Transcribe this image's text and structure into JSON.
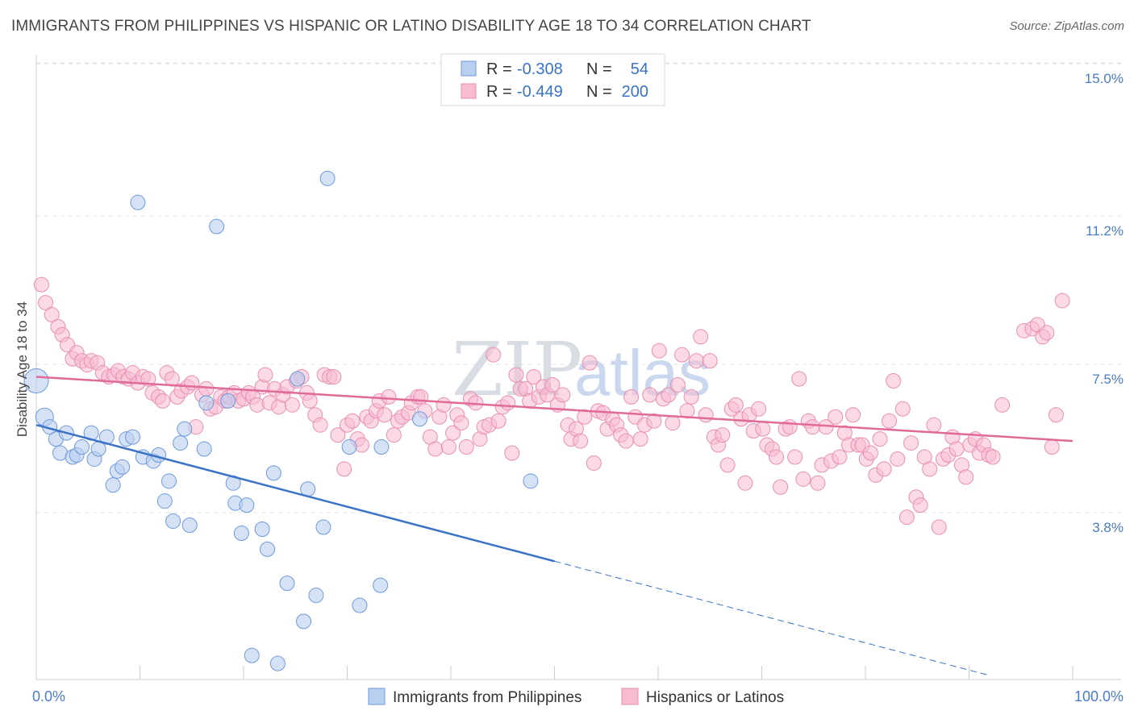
{
  "title": "IMMIGRANTS FROM PHILIPPINES VS HISPANIC OR LATINO DISABILITY AGE 18 TO 34 CORRELATION CHART",
  "source": "Source: ZipAtlas.com",
  "watermark": {
    "part1": "ZIP",
    "part2": "atlas"
  },
  "colors": {
    "blue": "#3a72c4",
    "blue_fill": "#b9cff0",
    "pink": "#e06a98",
    "pink_fill": "#f7bcd1",
    "grid": "#dfe3e8"
  },
  "legend": {
    "rows": [
      {
        "r_label": "R =",
        "r_value": "-0.308",
        "n_label": "N =",
        "n_value": "54"
      },
      {
        "r_label": "R =",
        "r_value": "-0.449",
        "n_label": "N =",
        "n_value": "200"
      }
    ]
  },
  "chart_data": {
    "type": "scatter",
    "title": "IMMIGRANTS FROM PHILIPPINES VS HISPANIC OR LATINO DISABILITY AGE 18 TO 34 CORRELATION CHART",
    "xlabel": "",
    "ylabel": "Disability Age 18 to 34",
    "xlim": [
      0,
      100
    ],
    "ylim": [
      0,
      15.5
    ],
    "x_tick_labels": [
      "0.0%",
      "100.0%"
    ],
    "y_ticks": [
      3.8,
      7.5,
      11.2,
      15.0
    ],
    "y_tick_labels": [
      "3.8%",
      "7.5%",
      "11.2%",
      "15.0%"
    ],
    "grid": true,
    "series": [
      {
        "name": "Immigrants from Philippines",
        "color": "#3a72c4",
        "R": -0.308,
        "N": 54,
        "trend": {
          "x0": 0,
          "y0": 6.35,
          "x1": 50,
          "y1": 2.95,
          "dashed_to_x": 92,
          "dashed_to_y": 0.1
        },
        "points": [
          [
            0,
            7.45
          ],
          [
            0.8,
            6.55
          ],
          [
            1.3,
            6.3
          ],
          [
            1.9,
            6.0
          ],
          [
            2.3,
            5.65
          ],
          [
            2.9,
            6.15
          ],
          [
            3.5,
            5.55
          ],
          [
            3.9,
            5.6
          ],
          [
            4.4,
            5.8
          ],
          [
            5.3,
            6.15
          ],
          [
            5.6,
            5.5
          ],
          [
            6.0,
            5.75
          ],
          [
            6.8,
            6.05
          ],
          [
            7.4,
            4.85
          ],
          [
            7.8,
            5.2
          ],
          [
            8.3,
            5.3
          ],
          [
            8.7,
            6.0
          ],
          [
            9.3,
            6.05
          ],
          [
            9.8,
            11.9
          ],
          [
            10.3,
            5.55
          ],
          [
            11.3,
            5.45
          ],
          [
            11.8,
            5.6
          ],
          [
            12.4,
            4.45
          ],
          [
            12.8,
            4.95
          ],
          [
            13.2,
            3.95
          ],
          [
            13.9,
            5.9
          ],
          [
            14.3,
            6.25
          ],
          [
            14.8,
            3.85
          ],
          [
            16.2,
            5.75
          ],
          [
            16.4,
            6.9
          ],
          [
            17.4,
            11.3
          ],
          [
            18.5,
            6.95
          ],
          [
            19.0,
            4.9
          ],
          [
            19.2,
            4.4
          ],
          [
            19.8,
            3.65
          ],
          [
            20.3,
            4.35
          ],
          [
            20.8,
            0.6
          ],
          [
            21.8,
            3.75
          ],
          [
            22.3,
            3.25
          ],
          [
            22.9,
            5.15
          ],
          [
            23.3,
            0.4
          ],
          [
            24.2,
            2.4
          ],
          [
            25.2,
            7.5
          ],
          [
            25.8,
            1.45
          ],
          [
            26.2,
            4.75
          ],
          [
            27.0,
            2.1
          ],
          [
            27.7,
            3.8
          ],
          [
            28.1,
            12.5
          ],
          [
            30.2,
            5.8
          ],
          [
            31.2,
            1.85
          ],
          [
            33.2,
            2.35
          ],
          [
            33.3,
            5.8
          ],
          [
            37.0,
            6.5
          ],
          [
            47.7,
            4.95
          ]
        ]
      },
      {
        "name": "Hispanics or Latinos",
        "color": "#e06a98",
        "R": -0.449,
        "N": 200,
        "trend": {
          "x0": 0,
          "y0": 7.55,
          "x1": 100,
          "y1": 5.95
        },
        "points": [
          [
            0.5,
            9.85
          ],
          [
            0.9,
            9.4
          ],
          [
            1.5,
            9.1
          ],
          [
            2.1,
            8.8
          ],
          [
            2.5,
            8.6
          ],
          [
            3.0,
            8.35
          ],
          [
            3.5,
            8.0
          ],
          [
            3.9,
            8.15
          ],
          [
            4.4,
            7.95
          ],
          [
            4.9,
            7.85
          ],
          [
            5.3,
            7.95
          ],
          [
            5.9,
            7.9
          ],
          [
            6.4,
            7.65
          ],
          [
            7.0,
            7.55
          ],
          [
            7.5,
            7.6
          ],
          [
            7.9,
            7.7
          ],
          [
            8.4,
            7.55
          ],
          [
            8.9,
            7.5
          ],
          [
            9.3,
            7.65
          ],
          [
            9.8,
            7.4
          ],
          [
            10.3,
            7.55
          ],
          [
            10.8,
            7.5
          ],
          [
            11.2,
            7.15
          ],
          [
            11.8,
            7.05
          ],
          [
            12.2,
            6.95
          ],
          [
            12.6,
            7.65
          ],
          [
            13.1,
            7.5
          ],
          [
            13.6,
            7.05
          ],
          [
            14.0,
            7.2
          ],
          [
            14.6,
            7.3
          ],
          [
            15.0,
            7.4
          ],
          [
            15.4,
            6.3
          ],
          [
            16.0,
            7.1
          ],
          [
            16.4,
            7.25
          ],
          [
            16.8,
            6.75
          ],
          [
            17.3,
            6.8
          ],
          [
            17.8,
            7.05
          ],
          [
            18.2,
            6.95
          ],
          [
            18.6,
            7.05
          ],
          [
            19.1,
            7.15
          ],
          [
            19.5,
            6.95
          ],
          [
            20.0,
            7.0
          ],
          [
            20.5,
            7.15
          ],
          [
            20.9,
            7.05
          ],
          [
            21.3,
            6.85
          ],
          [
            21.8,
            7.3
          ],
          [
            22.1,
            7.6
          ],
          [
            22.5,
            6.9
          ],
          [
            23.0,
            7.25
          ],
          [
            23.4,
            6.8
          ],
          [
            23.8,
            7.1
          ],
          [
            24.2,
            7.3
          ],
          [
            24.7,
            6.85
          ],
          [
            25.1,
            7.45
          ],
          [
            25.6,
            7.55
          ],
          [
            26.1,
            7.15
          ],
          [
            26.4,
            6.95
          ],
          [
            26.9,
            6.6
          ],
          [
            27.4,
            6.35
          ],
          [
            27.8,
            7.6
          ],
          [
            28.3,
            7.55
          ],
          [
            28.7,
            7.55
          ],
          [
            29.1,
            6.1
          ],
          [
            29.7,
            5.25
          ],
          [
            30.0,
            6.35
          ],
          [
            30.5,
            6.45
          ],
          [
            31.0,
            6.0
          ],
          [
            31.4,
            5.85
          ],
          [
            31.9,
            6.55
          ],
          [
            32.3,
            6.45
          ],
          [
            32.8,
            6.7
          ],
          [
            33.1,
            6.95
          ],
          [
            33.6,
            6.6
          ],
          [
            34.0,
            7.05
          ],
          [
            34.5,
            6.1
          ],
          [
            34.9,
            6.45
          ],
          [
            35.3,
            6.55
          ],
          [
            35.9,
            6.65
          ],
          [
            36.2,
            6.9
          ],
          [
            36.8,
            7.05
          ],
          [
            37.1,
            7.05
          ],
          [
            37.5,
            6.7
          ],
          [
            38.0,
            6.05
          ],
          [
            38.5,
            5.75
          ],
          [
            38.9,
            6.55
          ],
          [
            39.3,
            6.85
          ],
          [
            39.8,
            5.8
          ],
          [
            40.2,
            6.15
          ],
          [
            40.6,
            6.6
          ],
          [
            41.0,
            6.4
          ],
          [
            41.5,
            5.8
          ],
          [
            41.9,
            7.0
          ],
          [
            42.4,
            6.9
          ],
          [
            42.8,
            6.0
          ],
          [
            43.2,
            6.3
          ],
          [
            43.7,
            6.35
          ],
          [
            44.1,
            8.1
          ],
          [
            44.6,
            6.45
          ],
          [
            45.0,
            6.8
          ],
          [
            45.5,
            6.9
          ],
          [
            45.9,
            5.65
          ],
          [
            46.3,
            7.6
          ],
          [
            46.7,
            7.25
          ],
          [
            47.2,
            7.25
          ],
          [
            47.6,
            6.95
          ],
          [
            48.0,
            7.55
          ],
          [
            48.5,
            7.05
          ],
          [
            48.9,
            7.3
          ],
          [
            49.3,
            7.1
          ],
          [
            49.8,
            7.35
          ],
          [
            50.3,
            6.85
          ],
          [
            50.8,
            7.1
          ],
          [
            51.3,
            6.35
          ],
          [
            51.6,
            6.0
          ],
          [
            52.1,
            6.25
          ],
          [
            52.5,
            5.95
          ],
          [
            52.9,
            6.55
          ],
          [
            53.4,
            7.9
          ],
          [
            53.8,
            5.4
          ],
          [
            54.2,
            6.7
          ],
          [
            54.7,
            6.65
          ],
          [
            55.1,
            6.25
          ],
          [
            55.6,
            6.5
          ],
          [
            56.0,
            6.35
          ],
          [
            56.4,
            6.1
          ],
          [
            56.9,
            5.95
          ],
          [
            57.4,
            7.05
          ],
          [
            57.8,
            6.55
          ],
          [
            58.3,
            6.0
          ],
          [
            58.7,
            6.35
          ],
          [
            59.2,
            7.1
          ],
          [
            59.6,
            6.45
          ],
          [
            60.1,
            8.2
          ],
          [
            60.5,
            7.0
          ],
          [
            61.0,
            7.1
          ],
          [
            61.4,
            6.4
          ],
          [
            61.9,
            7.35
          ],
          [
            62.3,
            8.1
          ],
          [
            62.8,
            6.7
          ],
          [
            63.2,
            7.05
          ],
          [
            63.7,
            7.95
          ],
          [
            64.1,
            8.55
          ],
          [
            64.6,
            6.6
          ],
          [
            65.0,
            7.95
          ],
          [
            65.4,
            6.05
          ],
          [
            65.8,
            5.85
          ],
          [
            66.2,
            6.1
          ],
          [
            66.7,
            5.35
          ],
          [
            67.1,
            6.75
          ],
          [
            67.5,
            6.85
          ],
          [
            68.0,
            6.5
          ],
          [
            68.4,
            4.9
          ],
          [
            68.8,
            6.6
          ],
          [
            69.2,
            6.2
          ],
          [
            69.7,
            6.75
          ],
          [
            70.1,
            6.25
          ],
          [
            70.5,
            5.85
          ],
          [
            71.0,
            5.75
          ],
          [
            71.4,
            5.55
          ],
          [
            71.8,
            4.8
          ],
          [
            72.3,
            6.25
          ],
          [
            72.7,
            6.3
          ],
          [
            73.2,
            5.55
          ],
          [
            73.6,
            7.5
          ],
          [
            74.0,
            5.0
          ],
          [
            74.5,
            6.45
          ],
          [
            74.9,
            6.3
          ],
          [
            75.4,
            4.9
          ],
          [
            75.8,
            5.35
          ],
          [
            76.2,
            6.3
          ],
          [
            76.7,
            5.45
          ],
          [
            77.1,
            6.55
          ],
          [
            77.5,
            5.55
          ],
          [
            78.0,
            6.15
          ],
          [
            78.4,
            5.85
          ],
          [
            78.8,
            6.6
          ],
          [
            79.3,
            5.85
          ],
          [
            79.7,
            5.85
          ],
          [
            80.1,
            5.5
          ],
          [
            80.5,
            5.65
          ],
          [
            81.0,
            5.1
          ],
          [
            81.4,
            6.0
          ],
          [
            81.8,
            5.25
          ],
          [
            82.3,
            6.45
          ],
          [
            82.7,
            7.45
          ],
          [
            83.1,
            5.5
          ],
          [
            83.6,
            6.75
          ],
          [
            84.0,
            4.05
          ],
          [
            84.4,
            5.9
          ],
          [
            84.9,
            4.55
          ],
          [
            85.3,
            4.35
          ],
          [
            85.7,
            5.55
          ],
          [
            86.2,
            5.25
          ],
          [
            86.6,
            6.35
          ],
          [
            87.1,
            3.8
          ],
          [
            87.5,
            5.5
          ],
          [
            88.0,
            5.6
          ],
          [
            88.4,
            6.05
          ],
          [
            88.8,
            5.75
          ],
          [
            89.3,
            5.35
          ],
          [
            89.7,
            5.05
          ],
          [
            90.1,
            5.85
          ],
          [
            90.6,
            6.0
          ],
          [
            91.0,
            5.65
          ],
          [
            91.4,
            5.85
          ],
          [
            91.9,
            5.6
          ],
          [
            92.3,
            5.55
          ],
          [
            93.2,
            6.85
          ],
          [
            95.3,
            8.7
          ],
          [
            96.1,
            8.75
          ],
          [
            96.6,
            8.85
          ],
          [
            97.1,
            8.55
          ],
          [
            97.5,
            8.65
          ],
          [
            98.0,
            5.8
          ],
          [
            98.4,
            6.6
          ],
          [
            99.0,
            9.45
          ]
        ]
      }
    ]
  },
  "bottom_legend": {
    "series1": "Immigrants from Philippines",
    "series2": "Hispanics or Latinos"
  }
}
